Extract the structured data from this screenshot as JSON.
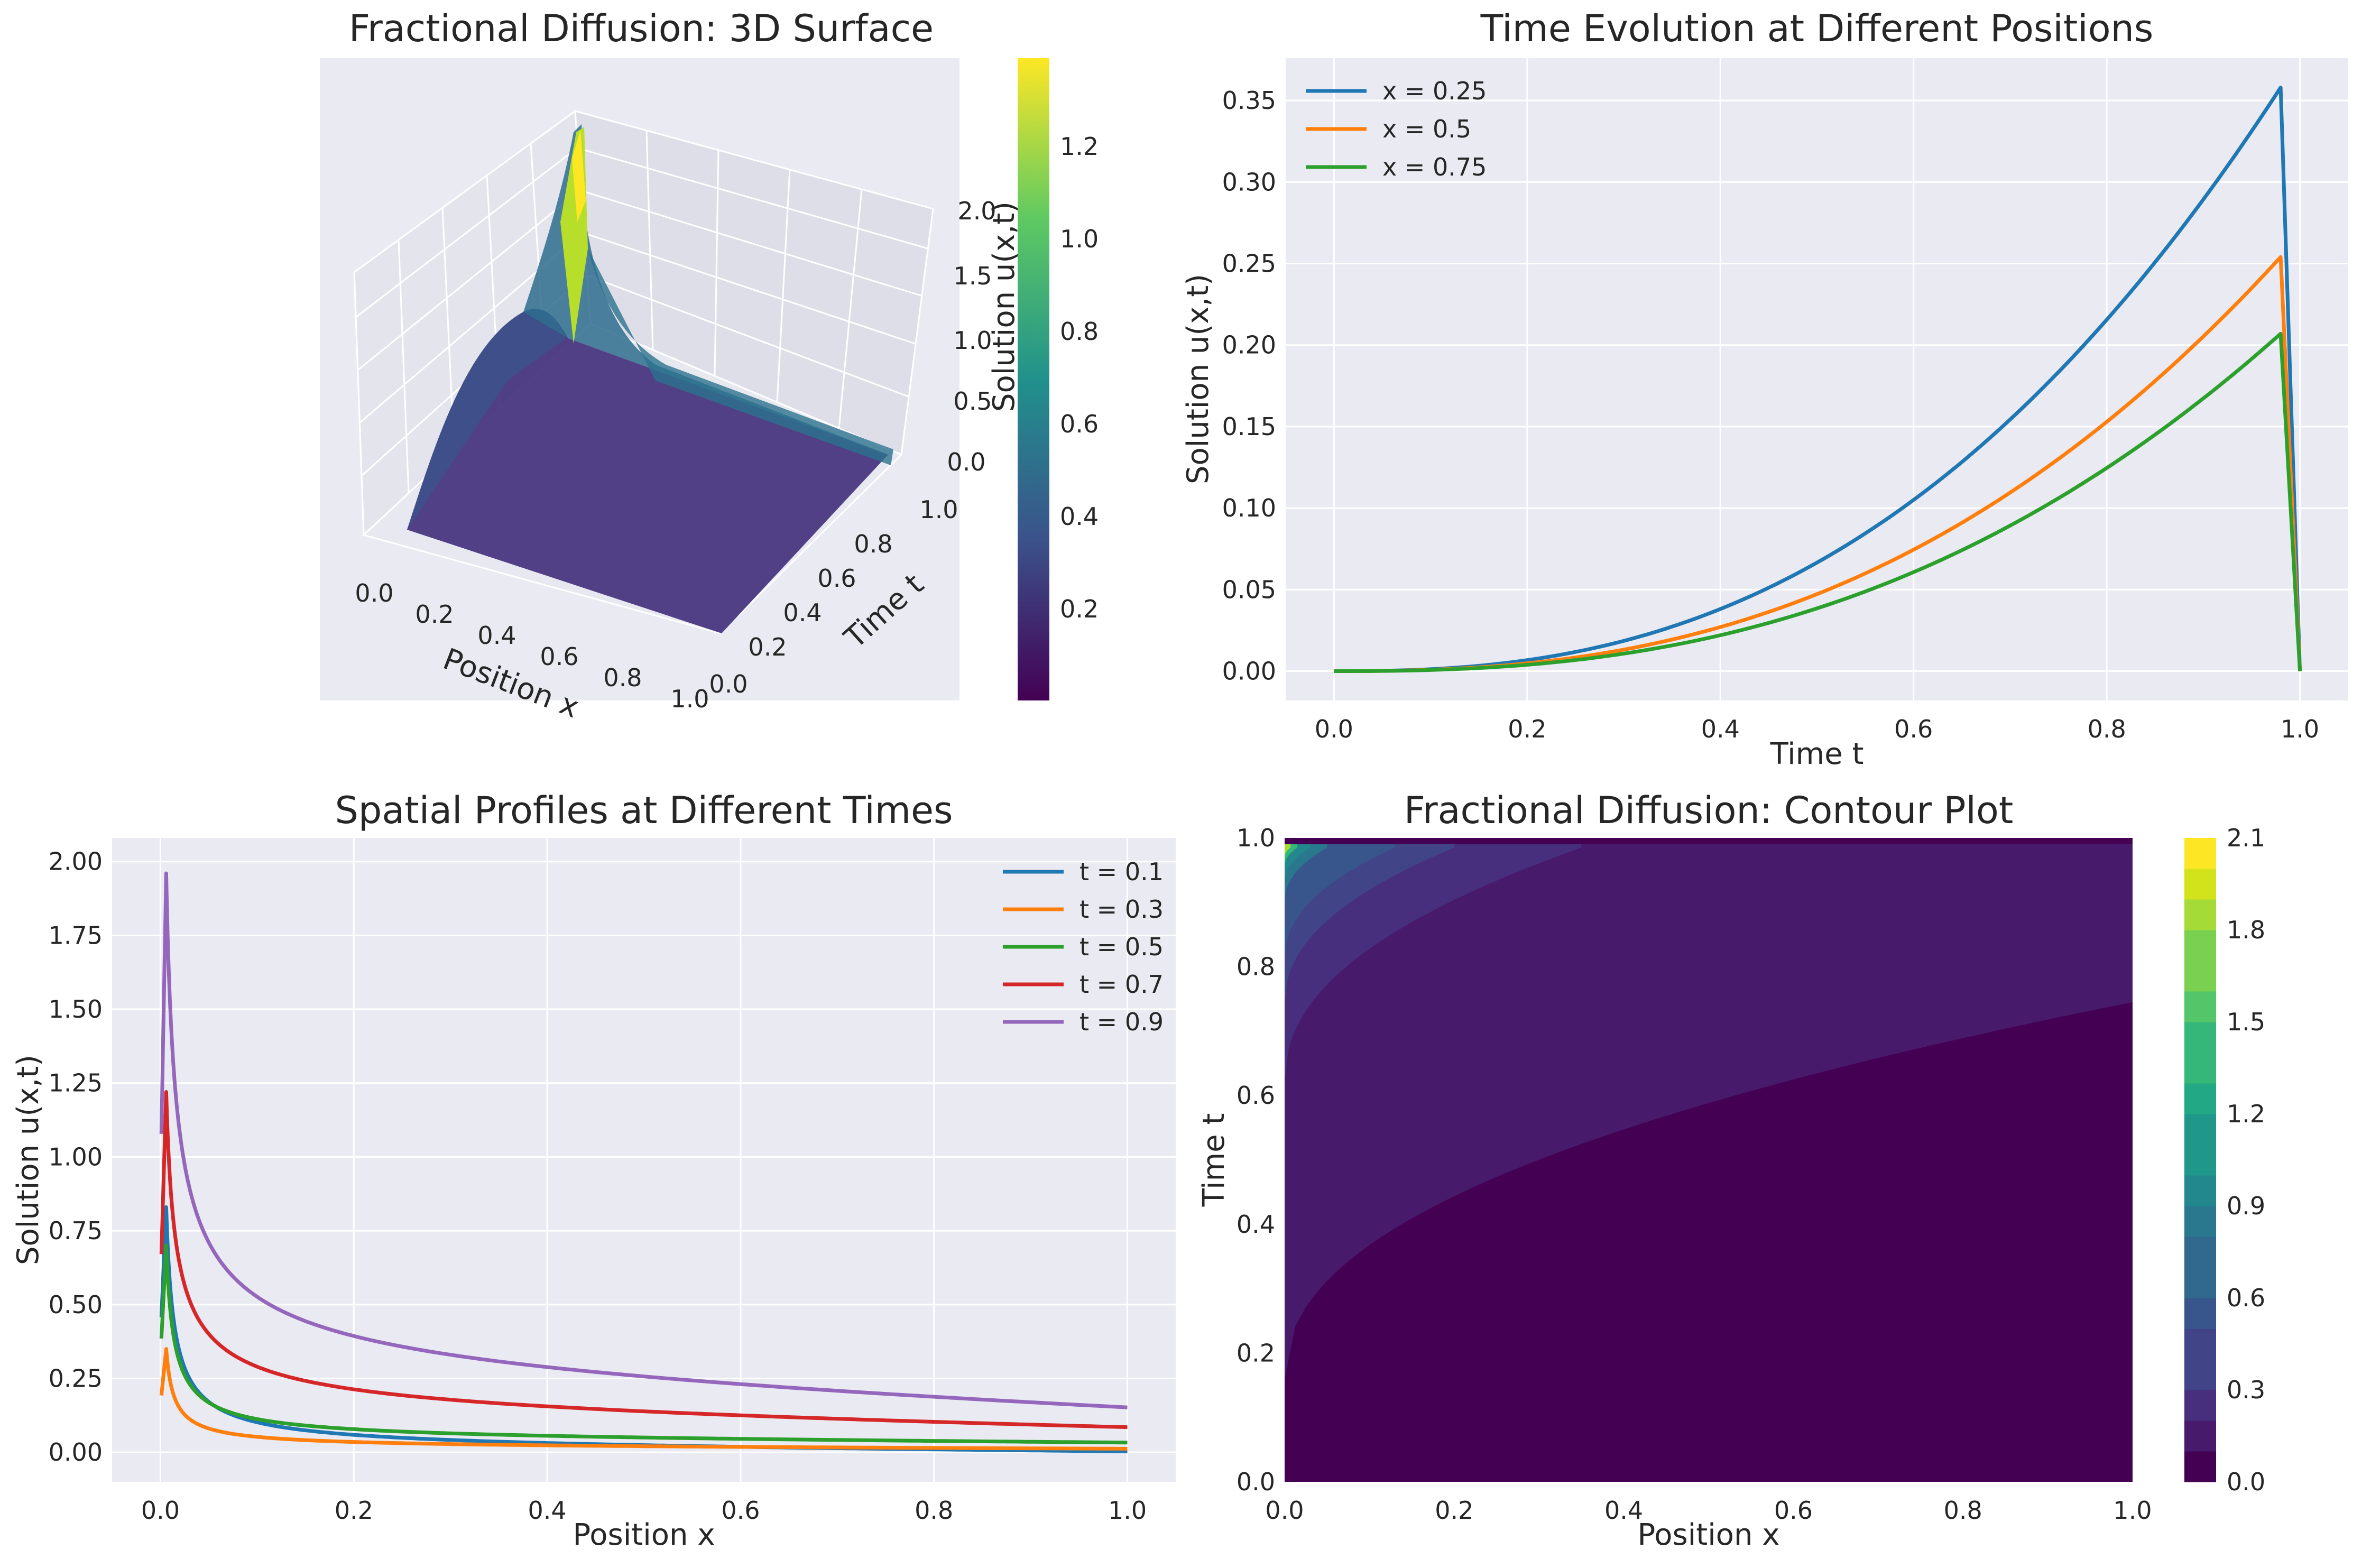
{
  "figure": {
    "background": "#ffffff",
    "axes_background": "#eaeaf2",
    "grid_color": "#ffffff"
  },
  "chart_data": [
    {
      "id": "surface",
      "type": "surface3d",
      "title": "Fractional Diffusion: 3D Surface",
      "xlabel": "Position x",
      "ylabel": "Time t",
      "zlabel": "Solution u(x,t)",
      "xlim": [
        0,
        1
      ],
      "ylim": [
        0,
        1
      ],
      "zlim": [
        0,
        2.0
      ],
      "xticks": [
        "0.0",
        "0.2",
        "0.4",
        "0.6",
        "0.8",
        "1.0"
      ],
      "yticks": [
        "0.0",
        "0.2",
        "0.4",
        "0.6",
        "0.8",
        "1.0"
      ],
      "zticks": [
        "0.0",
        "0.5",
        "1.0",
        "1.5",
        "2.0"
      ],
      "colormap": "viridis",
      "colorbar": {
        "min": 0.0,
        "max": 1.4,
        "ticks": [
          "0.2",
          "0.4",
          "0.6",
          "0.8",
          "1.0",
          "1.2"
        ]
      },
      "grid": true
    },
    {
      "id": "time_evolution",
      "type": "line",
      "title": "Time Evolution at Different Positions",
      "xlabel": "Time t",
      "ylabel": "Solution u(x,t)",
      "xlim": [
        -0.05,
        1.05
      ],
      "ylim": [
        -0.018,
        0.376
      ],
      "xticks": [
        "0.0",
        "0.2",
        "0.4",
        "0.6",
        "0.8",
        "1.0"
      ],
      "yticks": [
        "0.00",
        "0.05",
        "0.10",
        "0.15",
        "0.20",
        "0.25",
        "0.30",
        "0.35"
      ],
      "legend": "top-left",
      "grid": true,
      "series": [
        {
          "name": "x = 0.25",
          "color": "#1f77b4",
          "peak_t": 0.98,
          "peak_u": 0.358,
          "end_t": 1.0,
          "end_u": 0.0
        },
        {
          "name": "x = 0.5",
          "color": "#ff7f0e",
          "peak_t": 0.98,
          "peak_u": 0.254,
          "end_t": 1.0,
          "end_u": 0.0
        },
        {
          "name": "x = 0.75",
          "color": "#2ca02c",
          "peak_t": 0.98,
          "peak_u": 0.207,
          "end_t": 1.0,
          "end_u": 0.0
        }
      ]
    },
    {
      "id": "spatial_profiles",
      "type": "line",
      "title": "Spatial Profiles at Different Times",
      "xlabel": "Position x",
      "ylabel": "Solution u(x,t)",
      "xlim": [
        -0.05,
        1.05
      ],
      "ylim": [
        -0.1,
        2.08
      ],
      "xticks": [
        "0.0",
        "0.2",
        "0.4",
        "0.6",
        "0.8",
        "1.0"
      ],
      "yticks": [
        "0.00",
        "0.25",
        "0.50",
        "0.75",
        "1.00",
        "1.25",
        "1.50",
        "1.75",
        "2.00"
      ],
      "legend": "top-right",
      "grid": true,
      "series": [
        {
          "name": "t = 0.1",
          "color": "#1f77b4",
          "peak_u": 0.83,
          "end_u": 0.003
        },
        {
          "name": "t = 0.3",
          "color": "#ff7f0e",
          "peak_u": 0.35,
          "end_u": 0.012
        },
        {
          "name": "t = 0.5",
          "color": "#2ca02c",
          "peak_u": 0.7,
          "end_u": 0.033
        },
        {
          "name": "t = 0.7",
          "color": "#d62728",
          "peak_u": 1.22,
          "end_u": 0.085
        },
        {
          "name": "t = 0.9",
          "color": "#9467bd",
          "peak_u": 1.96,
          "end_u": 0.152
        }
      ]
    },
    {
      "id": "contour",
      "type": "contour",
      "title": "Fractional Diffusion: Contour Plot",
      "xlabel": "Position x",
      "ylabel": "Time t",
      "xlim": [
        0,
        1
      ],
      "ylim": [
        0,
        1
      ],
      "xticks": [
        "0.0",
        "0.2",
        "0.4",
        "0.6",
        "0.8",
        "1.0"
      ],
      "yticks": [
        "0.0",
        "0.2",
        "0.4",
        "0.6",
        "0.8",
        "1.0"
      ],
      "colormap": "viridis",
      "levels": [
        0.0,
        0.1,
        0.2,
        0.3,
        0.4,
        0.5,
        0.6,
        0.7,
        0.8,
        0.9,
        1.0,
        1.1,
        1.2,
        1.3,
        1.4,
        1.5,
        1.6,
        1.7,
        1.8,
        1.9,
        2.0,
        2.1
      ],
      "colorbar": {
        "min": 0.0,
        "max": 2.1,
        "ticks": [
          "0.0",
          "0.3",
          "0.6",
          "0.9",
          "1.2",
          "1.5",
          "1.8",
          "2.1"
        ]
      }
    }
  ]
}
